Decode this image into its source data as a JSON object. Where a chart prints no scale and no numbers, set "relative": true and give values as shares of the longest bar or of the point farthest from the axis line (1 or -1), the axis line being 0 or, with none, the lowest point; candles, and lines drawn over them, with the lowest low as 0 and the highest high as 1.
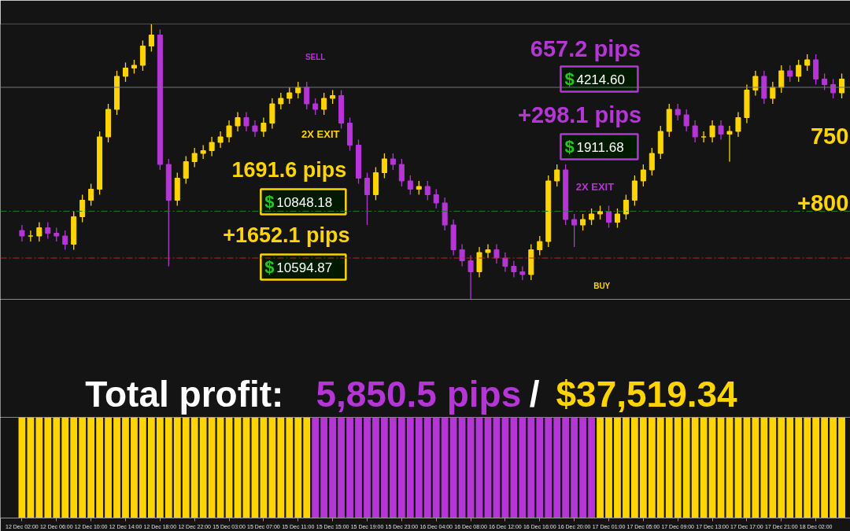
{
  "chart_data": [
    {
      "type": "candlestick",
      "relative": true,
      "title": "Total profit: 5,850.5 pips / $37,519.34",
      "ohlc": [
        [
          0.25,
          0.27,
          0.21,
          0.23
        ],
        [
          0.23,
          0.25,
          0.21,
          0.23
        ],
        [
          0.23,
          0.28,
          0.21,
          0.26
        ],
        [
          0.26,
          0.28,
          0.22,
          0.24
        ],
        [
          0.24,
          0.26,
          0.21,
          0.23
        ],
        [
          0.23,
          0.25,
          0.18,
          0.2
        ],
        [
          0.2,
          0.32,
          0.18,
          0.3
        ],
        [
          0.3,
          0.38,
          0.28,
          0.36
        ],
        [
          0.36,
          0.42,
          0.34,
          0.4
        ],
        [
          0.4,
          0.61,
          0.38,
          0.59
        ],
        [
          0.59,
          0.71,
          0.57,
          0.69
        ],
        [
          0.69,
          0.83,
          0.67,
          0.81
        ],
        [
          0.81,
          0.86,
          0.79,
          0.84
        ],
        [
          0.84,
          0.87,
          0.82,
          0.85
        ],
        [
          0.85,
          0.94,
          0.83,
          0.92
        ],
        [
          0.92,
          1.0,
          0.9,
          0.96
        ],
        [
          0.96,
          0.98,
          0.47,
          0.49
        ],
        [
          0.49,
          0.51,
          0.12,
          0.36
        ],
        [
          0.36,
          0.46,
          0.34,
          0.44
        ],
        [
          0.44,
          0.52,
          0.42,
          0.5
        ],
        [
          0.5,
          0.55,
          0.48,
          0.53
        ],
        [
          0.53,
          0.56,
          0.51,
          0.54
        ],
        [
          0.54,
          0.59,
          0.52,
          0.57
        ],
        [
          0.57,
          0.61,
          0.55,
          0.59
        ],
        [
          0.59,
          0.65,
          0.57,
          0.63
        ],
        [
          0.63,
          0.68,
          0.61,
          0.66
        ],
        [
          0.66,
          0.68,
          0.61,
          0.63
        ],
        [
          0.63,
          0.65,
          0.59,
          0.61
        ],
        [
          0.61,
          0.66,
          0.59,
          0.64
        ],
        [
          0.64,
          0.73,
          0.62,
          0.71
        ],
        [
          0.71,
          0.75,
          0.69,
          0.73
        ],
        [
          0.73,
          0.77,
          0.71,
          0.75
        ],
        [
          0.75,
          0.79,
          0.73,
          0.77
        ],
        [
          0.77,
          0.79,
          0.69,
          0.71
        ],
        [
          0.71,
          0.73,
          0.67,
          0.69
        ],
        [
          0.69,
          0.75,
          0.67,
          0.73
        ],
        [
          0.73,
          0.76,
          0.71,
          0.74
        ],
        [
          0.74,
          0.76,
          0.62,
          0.64
        ],
        [
          0.64,
          0.66,
          0.54,
          0.56
        ],
        [
          0.56,
          0.58,
          0.42,
          0.44
        ],
        [
          0.44,
          0.46,
          0.27,
          0.38
        ],
        [
          0.38,
          0.48,
          0.36,
          0.46
        ],
        [
          0.46,
          0.53,
          0.44,
          0.51
        ],
        [
          0.51,
          0.53,
          0.47,
          0.49
        ],
        [
          0.49,
          0.51,
          0.41,
          0.43
        ],
        [
          0.43,
          0.45,
          0.38,
          0.4
        ],
        [
          0.4,
          0.43,
          0.38,
          0.41
        ],
        [
          0.41,
          0.43,
          0.36,
          0.38
        ],
        [
          0.38,
          0.4,
          0.33,
          0.35
        ],
        [
          0.35,
          0.37,
          0.25,
          0.27
        ],
        [
          0.27,
          0.29,
          0.16,
          0.18
        ],
        [
          0.18,
          0.2,
          0.12,
          0.14
        ],
        [
          0.14,
          0.16,
          0.0,
          0.1
        ],
        [
          0.1,
          0.19,
          0.08,
          0.17
        ],
        [
          0.17,
          0.2,
          0.15,
          0.18
        ],
        [
          0.18,
          0.2,
          0.13,
          0.15
        ],
        [
          0.15,
          0.17,
          0.1,
          0.12
        ],
        [
          0.12,
          0.14,
          0.08,
          0.1
        ],
        [
          0.1,
          0.12,
          0.07,
          0.09
        ],
        [
          0.09,
          0.2,
          0.07,
          0.18
        ],
        [
          0.18,
          0.23,
          0.16,
          0.21
        ],
        [
          0.21,
          0.45,
          0.19,
          0.43
        ],
        [
          0.43,
          0.49,
          0.41,
          0.47
        ],
        [
          0.47,
          0.49,
          0.27,
          0.29
        ],
        [
          0.29,
          0.31,
          0.19,
          0.27
        ],
        [
          0.27,
          0.31,
          0.25,
          0.29
        ],
        [
          0.29,
          0.33,
          0.27,
          0.31
        ],
        [
          0.31,
          0.34,
          0.29,
          0.32
        ],
        [
          0.32,
          0.34,
          0.26,
          0.28
        ],
        [
          0.28,
          0.33,
          0.26,
          0.31
        ],
        [
          0.31,
          0.38,
          0.29,
          0.36
        ],
        [
          0.36,
          0.45,
          0.34,
          0.43
        ],
        [
          0.43,
          0.49,
          0.41,
          0.47
        ],
        [
          0.47,
          0.55,
          0.45,
          0.53
        ],
        [
          0.53,
          0.63,
          0.51,
          0.61
        ],
        [
          0.61,
          0.71,
          0.59,
          0.69
        ],
        [
          0.69,
          0.71,
          0.65,
          0.67
        ],
        [
          0.67,
          0.69,
          0.61,
          0.63
        ],
        [
          0.63,
          0.65,
          0.57,
          0.59
        ],
        [
          0.59,
          0.61,
          0.57,
          0.59
        ],
        [
          0.59,
          0.65,
          0.57,
          0.63
        ],
        [
          0.63,
          0.65,
          0.58,
          0.6
        ],
        [
          0.6,
          0.63,
          0.5,
          0.61
        ],
        [
          0.61,
          0.68,
          0.59,
          0.66
        ],
        [
          0.66,
          0.78,
          0.64,
          0.76
        ],
        [
          0.76,
          0.83,
          0.74,
          0.81
        ],
        [
          0.81,
          0.83,
          0.71,
          0.73
        ],
        [
          0.73,
          0.79,
          0.71,
          0.77
        ],
        [
          0.77,
          0.85,
          0.75,
          0.83
        ],
        [
          0.83,
          0.85,
          0.79,
          0.81
        ],
        [
          0.81,
          0.87,
          0.79,
          0.85
        ],
        [
          0.85,
          0.89,
          0.83,
          0.87
        ],
        [
          0.87,
          0.89,
          0.78,
          0.8
        ],
        [
          0.8,
          0.82,
          0.76,
          0.78
        ],
        [
          0.78,
          0.8,
          0.73,
          0.75
        ],
        [
          0.75,
          0.82,
          0.73,
          0.8
        ]
      ],
      "colors": [
        "#b535d6",
        "#ffd400",
        "#ffd400",
        "#b535d6",
        "#b535d6",
        "#b535d6",
        "#ffd400",
        "#ffd400",
        "#ffd400",
        "#ffd400",
        "#ffd400",
        "#ffd400",
        "#ffd400",
        "#ffd400",
        "#ffd400",
        "#ffd400",
        "#b535d6",
        "#b535d6",
        "#ffd400",
        "#ffd400",
        "#ffd400",
        "#ffd400",
        "#ffd400",
        "#ffd400",
        "#ffd400",
        "#ffd400",
        "#b535d6",
        "#b535d6",
        "#ffd400",
        "#ffd400",
        "#ffd400",
        "#ffd400",
        "#ffd400",
        "#b535d6",
        "#b535d6",
        "#ffd400",
        "#ffd400",
        "#b535d6",
        "#b535d6",
        "#b535d6",
        "#b535d6",
        "#ffd400",
        "#ffd400",
        "#b535d6",
        "#b535d6",
        "#b535d6",
        "#ffd400",
        "#b535d6",
        "#b535d6",
        "#b535d6",
        "#b535d6",
        "#b535d6",
        "#b535d6",
        "#ffd400",
        "#ffd400",
        "#b535d6",
        "#b535d6",
        "#b535d6",
        "#b535d6",
        "#ffd400",
        "#ffd400",
        "#ffd400",
        "#ffd400",
        "#b535d6",
        "#b535d6",
        "#ffd400",
        "#ffd400",
        "#ffd400",
        "#b535d6",
        "#ffd400",
        "#ffd400",
        "#ffd400",
        "#ffd400",
        "#ffd400",
        "#ffd400",
        "#ffd400",
        "#b535d6",
        "#b535d6",
        "#b535d6",
        "#ffd400",
        "#ffd400",
        "#b535d6",
        "#ffd400",
        "#ffd400",
        "#ffd400",
        "#ffd400",
        "#b535d6",
        "#ffd400",
        "#ffd400",
        "#b535d6",
        "#ffd400",
        "#ffd400",
        "#b535d6",
        "#b535d6",
        "#b535d6",
        "#ffd400"
      ],
      "ref_lines": [
        {
          "axis": "y",
          "value": 0.77,
          "color": "#6e7780",
          "line_style": "solid"
        },
        {
          "axis": "y",
          "value": 0.32,
          "color": "#1f7a1f",
          "line_style": "dashed"
        },
        {
          "axis": "y",
          "value": 0.15,
          "color": "#c42020",
          "line_style": "dashed"
        }
      ],
      "annotations": [
        "SELL",
        "2X EXIT",
        "1691.6 pips",
        "$10848.18",
        "+1652.1 pips",
        "$10594.87",
        "657.2 pips",
        "$4214.60",
        "+298.1 pips",
        "$1911.68",
        "2X EXIT",
        "BUY",
        "750",
        "+800"
      ]
    },
    {
      "type": "bar",
      "relative": true,
      "categories": [
        "12 Dec 02:00",
        null,
        null,
        null,
        "12 Dec 06:00",
        null,
        null,
        null,
        "12 Dec 10:00",
        null,
        null,
        null,
        "12 Dec 14:00",
        null,
        null,
        null,
        "12 Dec 18:00",
        null,
        null,
        null,
        "12 Dec 22:00",
        null,
        null,
        null,
        "15 Dec 03:00",
        null,
        null,
        null,
        "15 Dec 07:00",
        null,
        null,
        null,
        "15 Dec 11:00",
        null,
        null,
        null,
        "15 Dec 15:00",
        null,
        null,
        null,
        "15 Dec 19:00",
        null,
        null,
        null,
        "15 Dec 23:00",
        null,
        null,
        null,
        "16 Dec 04:00",
        null,
        null,
        null,
        "16 Dec 08:00",
        null,
        null,
        null,
        "16 Dec 12:00",
        null,
        null,
        null,
        "16 Dec 16:00",
        null,
        null,
        null,
        "16 Dec 20:00",
        null,
        null,
        null,
        "17 Dec 01:00",
        null,
        null,
        null,
        "17 Dec 05:00",
        null,
        null,
        null,
        "17 Dec 09:00",
        null,
        null,
        null,
        "17 Dec 13:00",
        null,
        null,
        null,
        "17 Dec 17:00",
        null,
        null,
        null,
        "17 Dec 21:00",
        null,
        null,
        null,
        "18 Dec 02:00",
        null,
        null,
        null
      ],
      "values": [
        1,
        1,
        1,
        1,
        1,
        1,
        1,
        1,
        1,
        1,
        1,
        1,
        1,
        1,
        1,
        1,
        1,
        1,
        1,
        1,
        1,
        1,
        1,
        1,
        1,
        1,
        1,
        1,
        1,
        1,
        1,
        1,
        1,
        1,
        1,
        1,
        1,
        1,
        1,
        1,
        1,
        1,
        1,
        1,
        1,
        1,
        1,
        1,
        1,
        1,
        1,
        1,
        1,
        1,
        1,
        1,
        1,
        1,
        1,
        1,
        1,
        1,
        1,
        1,
        1,
        1,
        1,
        1,
        1,
        1,
        1,
        1,
        1,
        1,
        1,
        1,
        1,
        1,
        1,
        1,
        1,
        1,
        1,
        1,
        1,
        1,
        1,
        1,
        1,
        1,
        1,
        1,
        1,
        1,
        1,
        1
      ],
      "colors": [
        "#ffd400",
        "#ffd400",
        "#ffd400",
        "#ffd400",
        "#ffd400",
        "#ffd400",
        "#ffd400",
        "#ffd400",
        "#ffd400",
        "#ffd400",
        "#ffd400",
        "#ffd400",
        "#ffd400",
        "#ffd400",
        "#ffd400",
        "#ffd400",
        "#ffd400",
        "#ffd400",
        "#ffd400",
        "#ffd400",
        "#ffd400",
        "#ffd400",
        "#ffd400",
        "#ffd400",
        "#ffd400",
        "#ffd400",
        "#ffd400",
        "#ffd400",
        "#ffd400",
        "#ffd400",
        "#ffd400",
        "#ffd400",
        "#ffd400",
        "#ffd400",
        "#b535d6",
        "#b535d6",
        "#b535d6",
        "#b535d6",
        "#b535d6",
        "#b535d6",
        "#b535d6",
        "#b535d6",
        "#b535d6",
        "#b535d6",
        "#b535d6",
        "#b535d6",
        "#b535d6",
        "#b535d6",
        "#b535d6",
        "#b535d6",
        "#b535d6",
        "#b535d6",
        "#b535d6",
        "#b535d6",
        "#b535d6",
        "#b535d6",
        "#b535d6",
        "#b535d6",
        "#b535d6",
        "#b535d6",
        "#b535d6",
        "#b535d6",
        "#b535d6",
        "#b535d6",
        "#b535d6",
        "#b535d6",
        "#b535d6",
        "#ffd400",
        "#ffd400",
        "#ffd400",
        "#ffd400",
        "#ffd400",
        "#ffd400",
        "#ffd400",
        "#ffd400",
        "#ffd400",
        "#ffd400",
        "#ffd400",
        "#ffd400",
        "#ffd400",
        "#ffd400",
        "#ffd400",
        "#ffd400",
        "#ffd400",
        "#ffd400",
        "#ffd400",
        "#ffd400",
        "#ffd400",
        "#ffd400",
        "#ffd400",
        "#ffd400",
        "#ffd400",
        "#ffd400",
        "#ffd400",
        "#ffd400",
        "#ffd400"
      ]
    }
  ]
}
